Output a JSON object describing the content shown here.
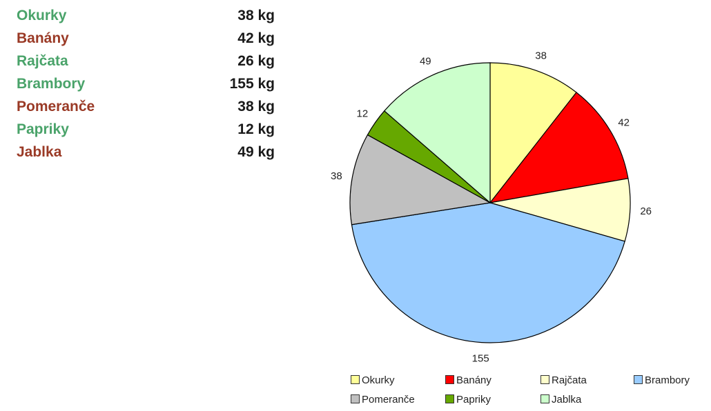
{
  "table": {
    "rows": [
      {
        "name": "Okurky",
        "value": "38 kg",
        "color": "#4aa36a"
      },
      {
        "name": "Banány",
        "value": "42 kg",
        "color": "#9a3a26"
      },
      {
        "name": "Rajčata",
        "value": "26 kg",
        "color": "#4aa36a"
      },
      {
        "name": "Brambory",
        "value": "155 kg",
        "color": "#4aa36a"
      },
      {
        "name": "Pomeranče",
        "value": "38 kg",
        "color": "#9a3a26"
      },
      {
        "name": "Papriky",
        "value": "12 kg",
        "color": "#4aa36a"
      },
      {
        "name": "Jablka",
        "value": "49 kg",
        "color": "#9a3a26"
      }
    ]
  },
  "chart_data": {
    "type": "pie",
    "categories": [
      "Okurky",
      "Banány",
      "Rajčata",
      "Brambory",
      "Pomeranče",
      "Papriky",
      "Jablka"
    ],
    "values": [
      38,
      42,
      26,
      155,
      38,
      12,
      49
    ],
    "data_labels": [
      "38",
      "42",
      "26",
      "155",
      "38",
      "12",
      "49"
    ],
    "colors": [
      "#ffff99",
      "#ff0000",
      "#ffffcc",
      "#99ccff",
      "#c0c0c0",
      "#66a800",
      "#ccffcc"
    ],
    "start_angle_deg": 0,
    "direction": "clockwise",
    "title": "",
    "legend": {
      "placement": "bottom",
      "items": [
        "Okurky",
        "Banány",
        "Rajčata",
        "Brambory",
        "Pomeranče",
        "Papriky",
        "Jablka"
      ]
    }
  }
}
